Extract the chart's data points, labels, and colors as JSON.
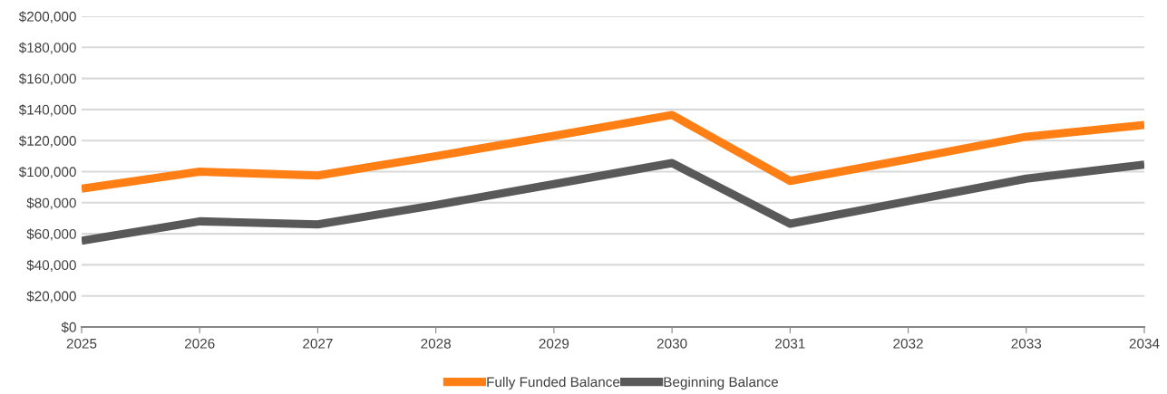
{
  "chart_data": {
    "type": "line",
    "x": [
      2025,
      2026,
      2027,
      2028,
      2029,
      2030,
      2031,
      2032,
      2033,
      2034
    ],
    "series": [
      {
        "name": "Fully Funded Balance",
        "color": "#ff7f14",
        "values": [
          89000,
          100000,
          97500,
          110000,
          123000,
          136500,
          94000,
          108000,
          122500,
          130000
        ]
      },
      {
        "name": "Beginning Balance",
        "color": "#595959",
        "values": [
          55500,
          68000,
          66000,
          78500,
          92000,
          105500,
          66500,
          81000,
          95500,
          104500
        ]
      }
    ],
    "xlim": [
      2025,
      2034
    ],
    "xticks": [
      2025,
      2026,
      2027,
      2028,
      2029,
      2030,
      2031,
      2032,
      2033,
      2034
    ],
    "ylim": [
      0,
      200000
    ],
    "yticks": [
      {
        "value": 0,
        "label": "$0"
      },
      {
        "value": 20000,
        "label": "$20,000"
      },
      {
        "value": 40000,
        "label": "$40,000"
      },
      {
        "value": 60000,
        "label": "$60,000"
      },
      {
        "value": 80000,
        "label": "$80,000"
      },
      {
        "value": 100000,
        "label": "$100,000"
      },
      {
        "value": 120000,
        "label": "$120,000"
      },
      {
        "value": 140000,
        "label": "$140,000"
      },
      {
        "value": 160000,
        "label": "$160,000"
      },
      {
        "value": 180000,
        "label": "$180,000"
      },
      {
        "value": 200000,
        "label": "$200,000"
      }
    ],
    "grid": "y",
    "legend": "bottom",
    "marker": "none",
    "line_style": "solid"
  }
}
